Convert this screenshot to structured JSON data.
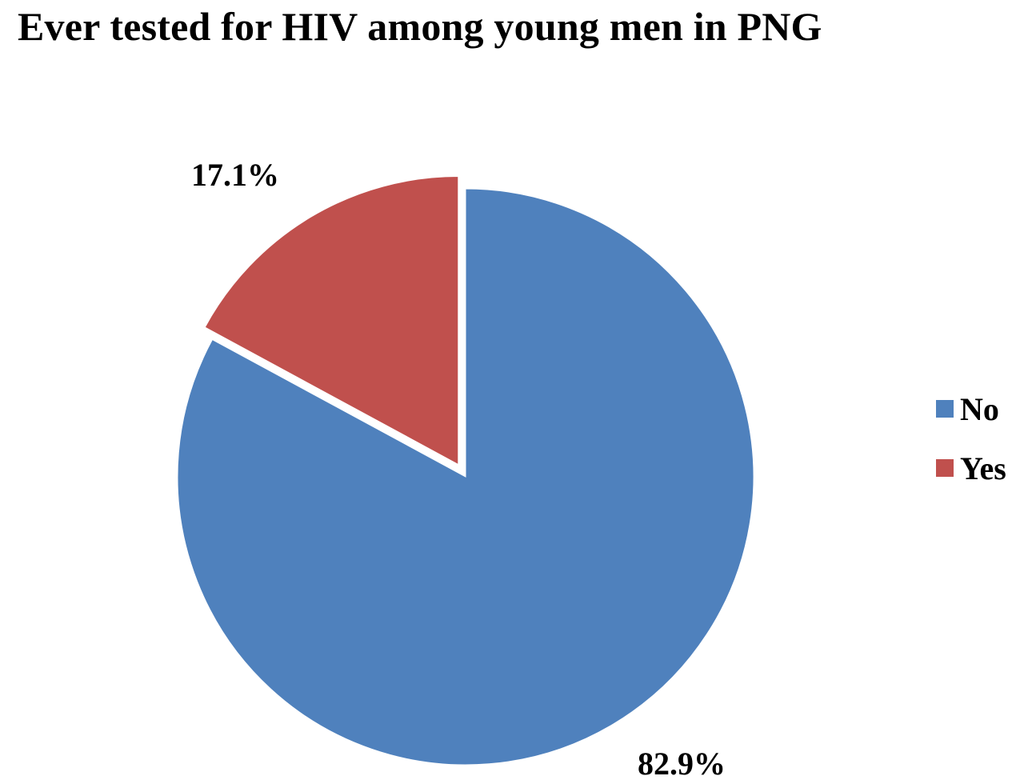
{
  "chart_data": {
    "type": "pie",
    "title": "Ever tested for HIV  among young men in PNG",
    "slices": [
      {
        "label": "No",
        "value": 82.9,
        "value_label": "82.9%",
        "color": "#4F81BD"
      },
      {
        "label": "Yes",
        "value": 17.1,
        "value_label": "17.1%",
        "color": "#C0504D",
        "exploded": true
      }
    ],
    "start_angle": "12 o'clock",
    "direction": "clockwise",
    "legend": {
      "placement": "right",
      "entries": [
        {
          "label": "No",
          "color": "#4F81BD"
        },
        {
          "label": "Yes",
          "color": "#C0504D"
        }
      ]
    }
  }
}
